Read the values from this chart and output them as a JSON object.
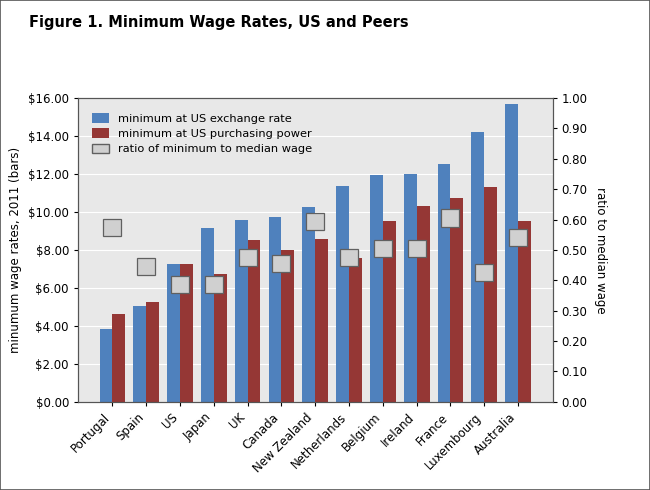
{
  "countries": [
    "Portugal",
    "Spain",
    "US",
    "Japan",
    "UK",
    "Canada",
    "New Zealand",
    "Netherlands",
    "Belgium",
    "Ireland",
    "France",
    "Luxembourg",
    "Australia"
  ],
  "exchange_rate": [
    3.85,
    5.05,
    7.25,
    9.15,
    9.6,
    9.75,
    10.25,
    11.35,
    11.95,
    12.0,
    12.55,
    14.2,
    15.7
  ],
  "purchasing_power": [
    4.65,
    5.25,
    7.25,
    6.75,
    8.5,
    8.0,
    8.6,
    7.55,
    9.5,
    10.3,
    10.75,
    11.3,
    9.5
  ],
  "ratio": [
    0.575,
    0.445,
    0.385,
    0.385,
    0.475,
    0.455,
    0.595,
    0.475,
    0.505,
    0.505,
    0.605,
    0.425,
    0.54
  ],
  "title": "Figure 1. Minimum Wage Rates, US and Peers",
  "ylabel_left": "minumum wage rates, 2011 (bars)",
  "ylabel_right": "ratio to median wage",
  "legend_exchange": "minimum at US exchange rate",
  "legend_purchasing": "minimum at US purchasing power",
  "legend_ratio": "ratio of minimum to median wage",
  "ylim_left": [
    0,
    16
  ],
  "ylim_right": [
    0,
    1.0
  ],
  "yticks_left": [
    0,
    2,
    4,
    6,
    8,
    10,
    12,
    14,
    16
  ],
  "yticks_right": [
    0.0,
    0.1,
    0.2,
    0.3,
    0.4,
    0.5,
    0.6,
    0.7,
    0.8,
    0.9,
    1.0
  ],
  "color_exchange": "#4F81BD",
  "color_purchasing": "#953735",
  "color_ratio_fill": "#D0D0D0",
  "color_ratio_edge": "#606060",
  "plot_bg_color": "#E8E8E8",
  "fig_bg_color": "#F5F5F5",
  "bar_width": 0.38
}
